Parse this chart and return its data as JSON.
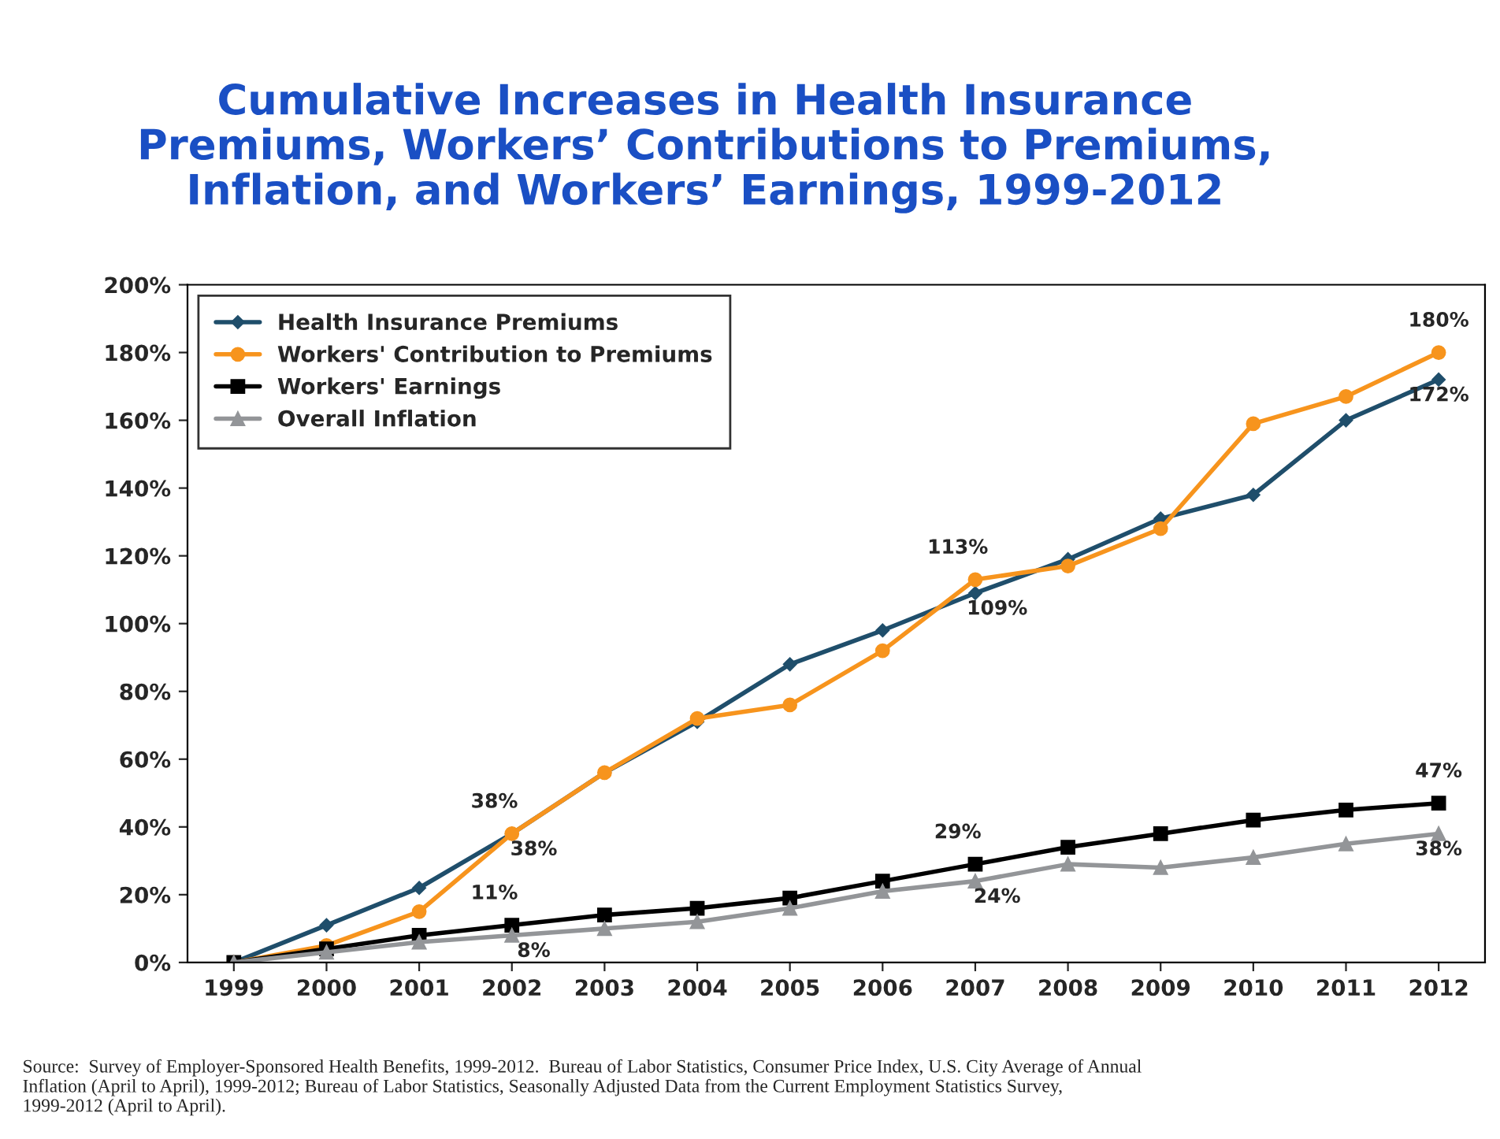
{
  "chart_data": {
    "type": "line",
    "title": "Cumulative Increases in Health Insurance\nPremiums, Workers’ Contributions to Premiums,\nInflation, and Workers’ Earnings, 1999-2012",
    "categories": [
      "1999",
      "2000",
      "2001",
      "2002",
      "2003",
      "2004",
      "2005",
      "2006",
      "2007",
      "2008",
      "2009",
      "2010",
      "2011",
      "2012"
    ],
    "series": [
      {
        "name": "Health Insurance Premiums",
        "color": "#1f4e6b",
        "marker": "diamond",
        "values": [
          0,
          11,
          22,
          38,
          56,
          71,
          88,
          98,
          109,
          119,
          131,
          138,
          160,
          172
        ],
        "value_labels": [
          null,
          null,
          null,
          "38%",
          null,
          null,
          null,
          null,
          "109%",
          null,
          null,
          null,
          null,
          "172%"
        ]
      },
      {
        "name": "Workers' Contribution to Premiums",
        "color": "#f7941d",
        "marker": "circle",
        "values": [
          0,
          5,
          15,
          38,
          56,
          72,
          76,
          92,
          113,
          117,
          128,
          159,
          167,
          180
        ],
        "value_labels": [
          null,
          null,
          null,
          "38%",
          null,
          null,
          null,
          null,
          "113%",
          null,
          null,
          null,
          null,
          "180%"
        ]
      },
      {
        "name": "Workers' Earnings",
        "color": "#000000",
        "marker": "square",
        "values": [
          0,
          4,
          8,
          11,
          14,
          16,
          19,
          24,
          29,
          34,
          38,
          42,
          45,
          47
        ],
        "value_labels": [
          null,
          null,
          null,
          "11%",
          null,
          null,
          null,
          null,
          "29%",
          null,
          null,
          null,
          null,
          "47%"
        ]
      },
      {
        "name": "Overall Inflation",
        "color": "#939598",
        "marker": "triangle",
        "values": [
          0,
          3,
          6,
          8,
          10,
          12,
          16,
          21,
          24,
          29,
          28,
          31,
          35,
          38
        ],
        "value_labels": [
          null,
          null,
          null,
          "8%",
          null,
          null,
          null,
          null,
          "24%",
          null,
          null,
          null,
          null,
          "38%"
        ]
      }
    ],
    "ylim": [
      0,
      200
    ],
    "yticks": [
      {
        "value": 0,
        "label": "0%"
      },
      {
        "value": 20,
        "label": "20%"
      },
      {
        "value": 40,
        "label": "40%"
      },
      {
        "value": 60,
        "label": "60%"
      },
      {
        "value": 80,
        "label": "80%"
      },
      {
        "value": 100,
        "label": "100%"
      },
      {
        "value": 120,
        "label": "120%"
      },
      {
        "value": 140,
        "label": "140%"
      },
      {
        "value": 160,
        "label": "160%"
      },
      {
        "value": 180,
        "label": "180%"
      },
      {
        "value": 200,
        "label": "200%"
      }
    ],
    "grid": false,
    "legend": "top left",
    "line_style": "solid",
    "annotations": [
      "Source:  Survey of Employer-Sponsored Health Benefits, 1999-2012.  Bureau of Labor Statistics, Consumer Price Index, U.S. City Average of Annual Inflation (April to April), 1999-2012; Bureau of Labor Statistics, Seasonally Adjusted Data from the Current Employment Statistics Survey, 1999-2012 (April to April)."
    ]
  }
}
